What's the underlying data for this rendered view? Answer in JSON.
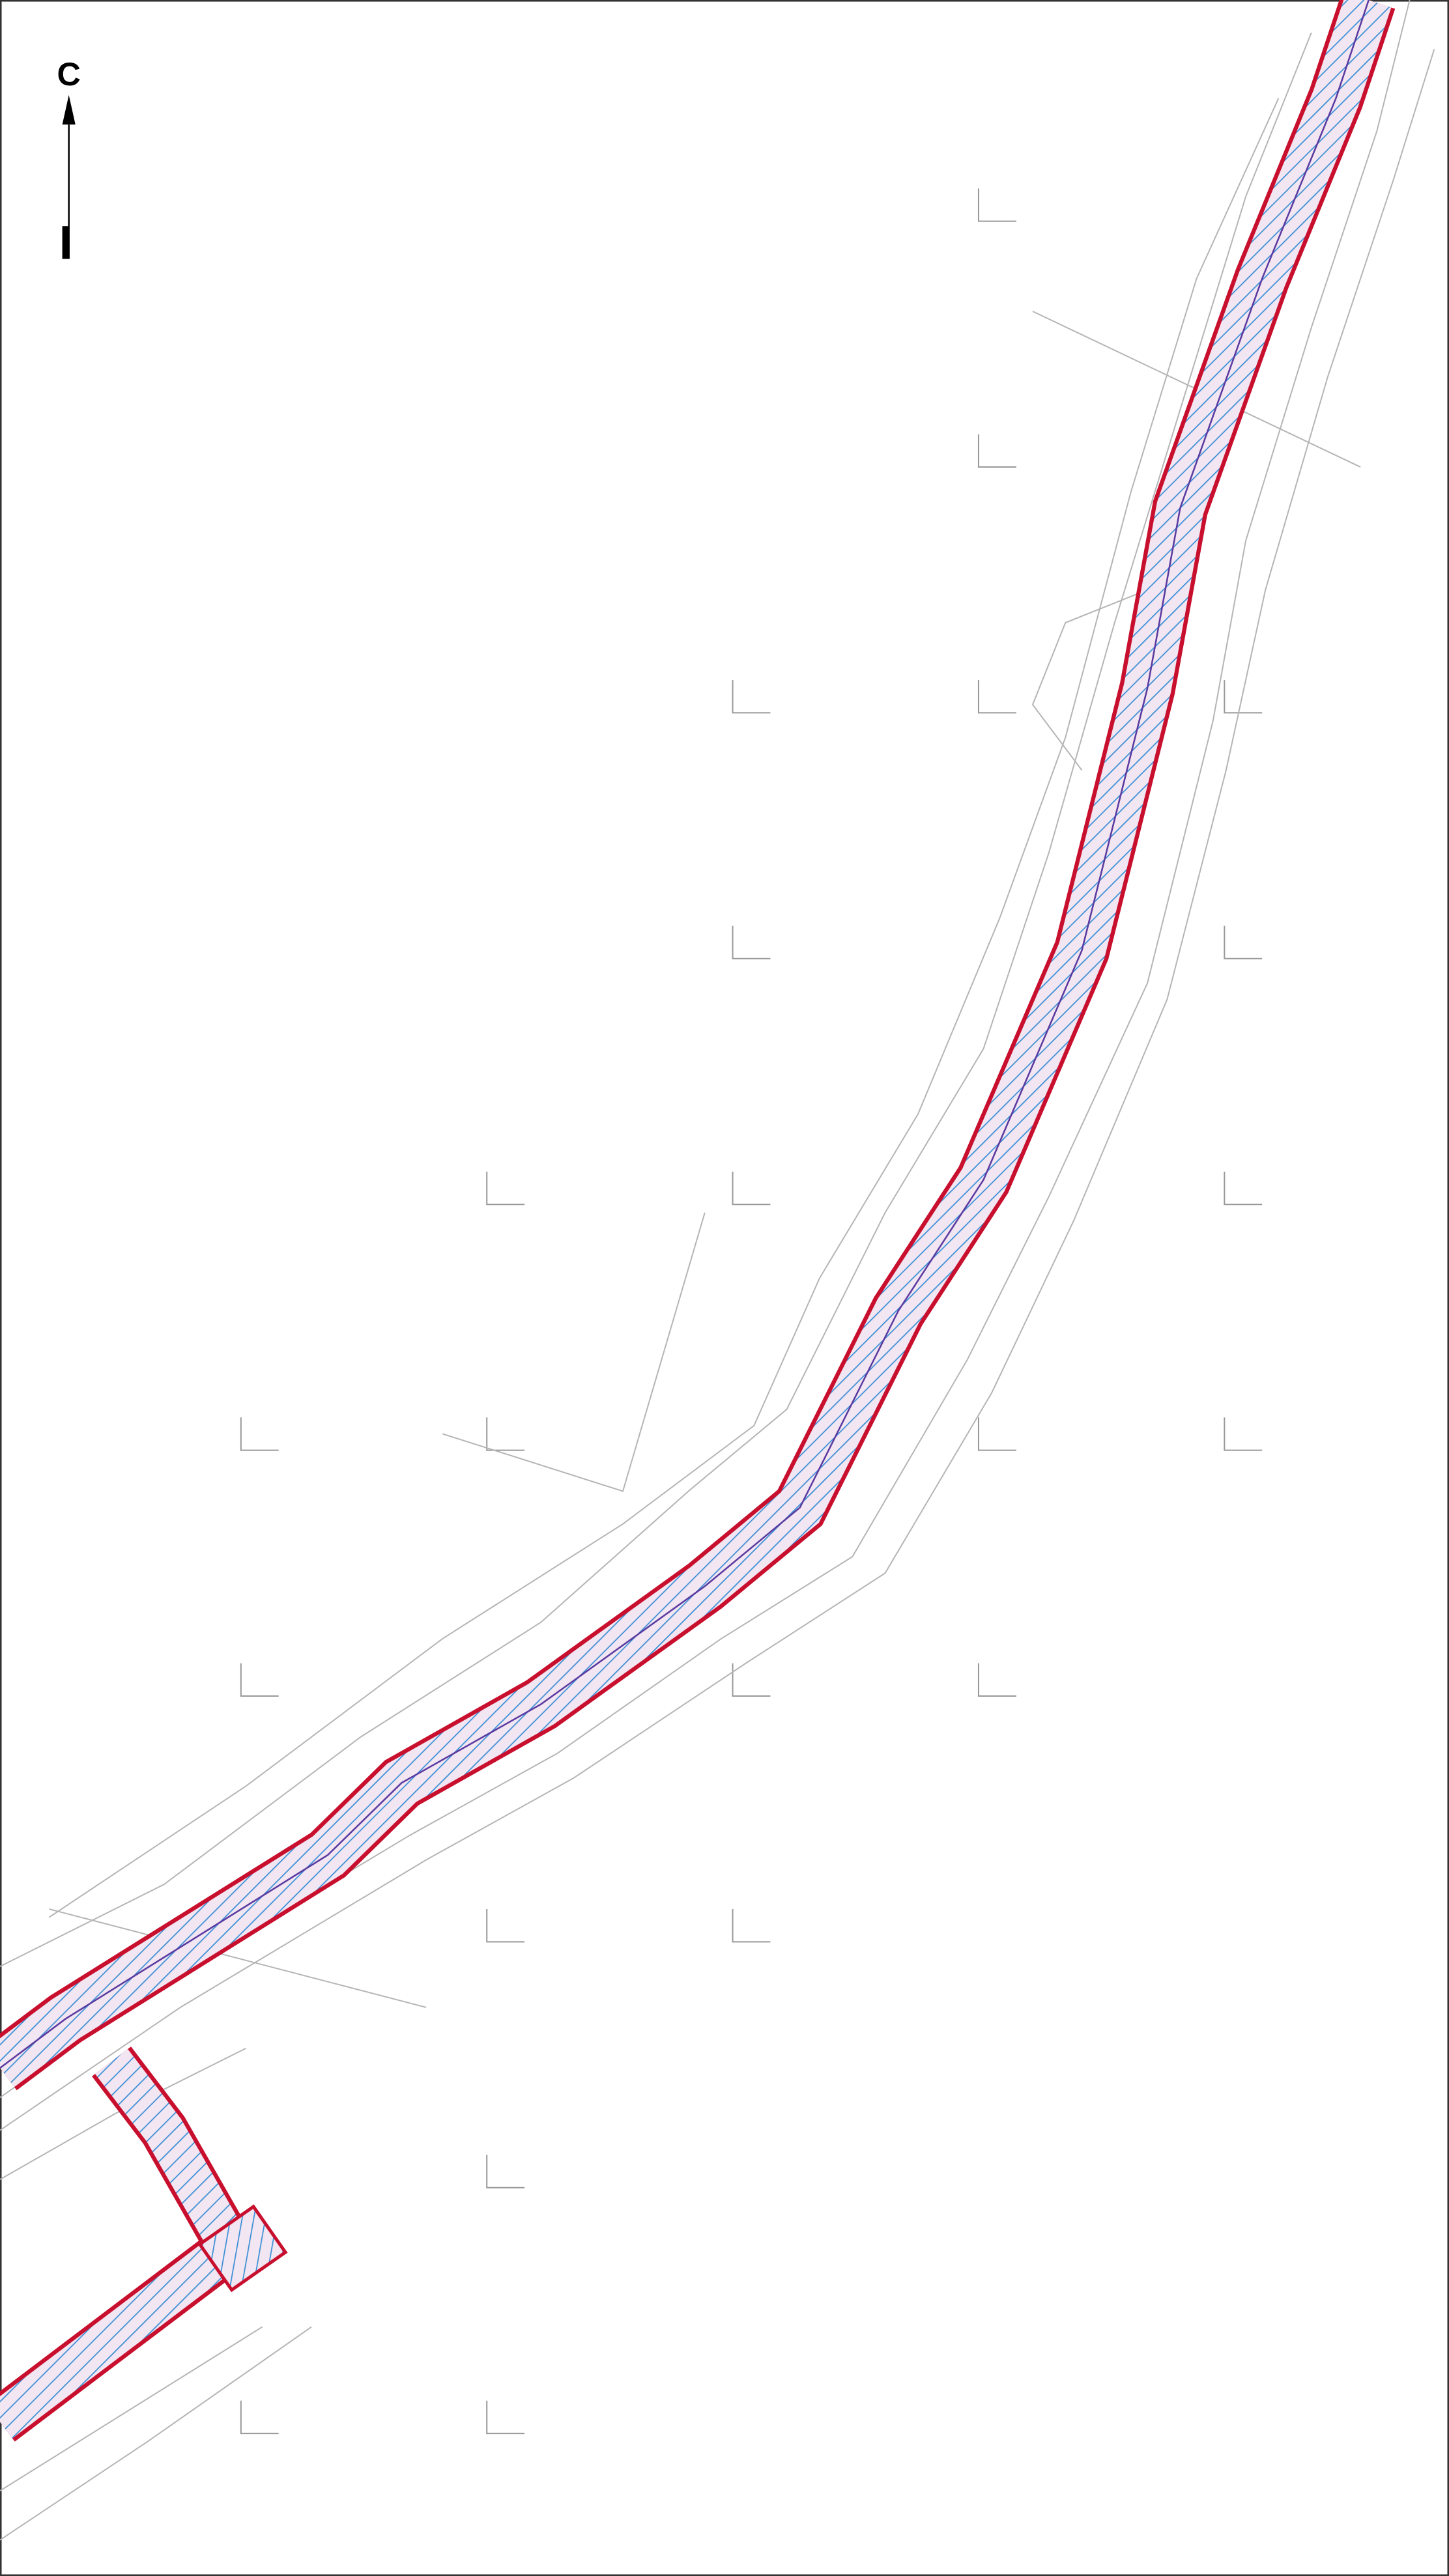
{
  "north_arrow": {
    "label": "С"
  }
}
